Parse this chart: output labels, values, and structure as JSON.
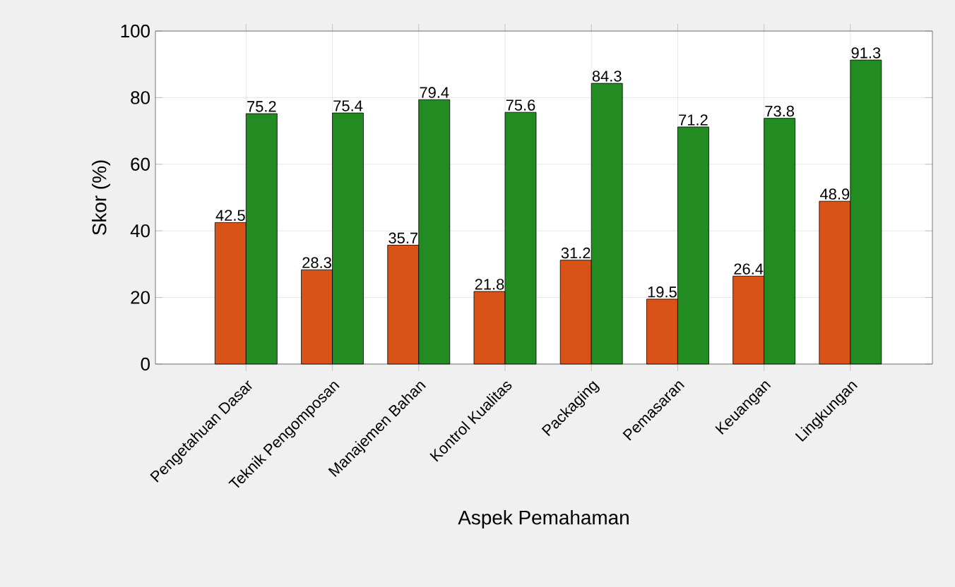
{
  "chart_data": {
    "type": "bar",
    "xlabel": "Aspek Pemahaman",
    "ylabel": "Skor (%)",
    "categories": [
      "Pengetahuan Dasar",
      "Teknik Pengomposan",
      "Manajemen Bahan",
      "Kontrol Kualitas",
      "Packaging",
      "Pemasaran",
      "Keuangan",
      "Lingkungan"
    ],
    "series": [
      {
        "color": "#d95319",
        "values": [
          42.5,
          28.3,
          35.7,
          21.8,
          31.2,
          19.5,
          26.4,
          48.9
        ]
      },
      {
        "color": "#228b22",
        "values": [
          75.2,
          75.4,
          79.4,
          75.6,
          84.3,
          71.2,
          73.8,
          91.3
        ]
      }
    ],
    "ylim": [
      0,
      100
    ],
    "yticks": [
      0,
      20,
      40,
      60,
      80,
      100
    ],
    "grid": true,
    "data_labels": true
  }
}
